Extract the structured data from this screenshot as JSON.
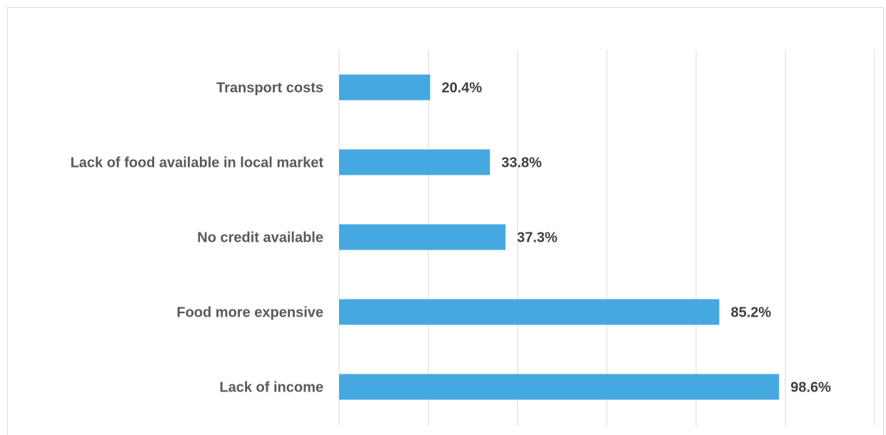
{
  "chart_data": {
    "type": "bar",
    "orientation": "horizontal",
    "categories": [
      "Transport costs",
      "Lack of food available in local market",
      "No credit available",
      "Food more expensive",
      "Lack of income"
    ],
    "values": [
      20.4,
      33.8,
      37.3,
      85.2,
      98.6
    ],
    "value_labels": [
      "20.4%",
      "33.8%",
      "37.3%",
      "85.2%",
      "98.6%"
    ],
    "xlim": [
      0,
      120
    ],
    "grid": true,
    "bar_color": "#46a8e0"
  }
}
